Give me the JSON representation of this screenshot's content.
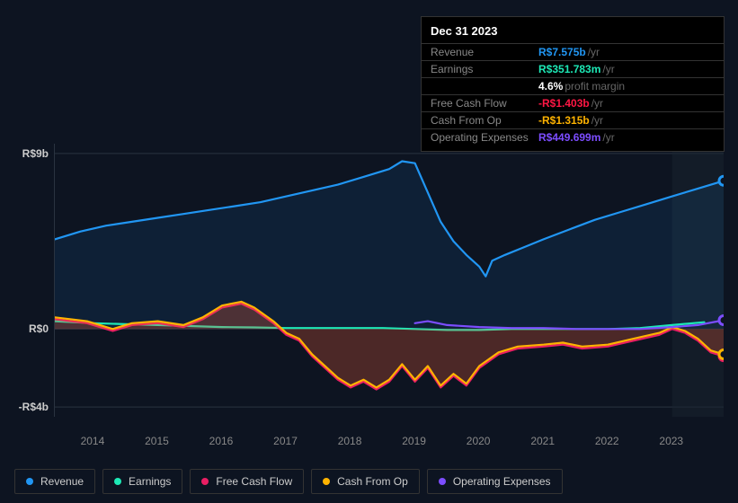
{
  "tooltip": {
    "date": "Dec 31 2023",
    "rows": [
      {
        "label": "Revenue",
        "value": "R$7.575b",
        "suffix": "/yr",
        "color": "#2196f3"
      },
      {
        "label": "Earnings",
        "value": "R$351.783m",
        "suffix": "/yr",
        "color": "#1de9b6"
      },
      {
        "label": "",
        "value": "4.6%",
        "suffix": "profit margin",
        "color": "#ffffff"
      },
      {
        "label": "Free Cash Flow",
        "value": "-R$1.403b",
        "suffix": "/yr",
        "color": "#ff1744"
      },
      {
        "label": "Cash From Op",
        "value": "-R$1.315b",
        "suffix": "/yr",
        "color": "#ffb300"
      },
      {
        "label": "Operating Expenses",
        "value": "R$449.699m",
        "suffix": "/yr",
        "color": "#7c4dff"
      }
    ]
  },
  "chart": {
    "type": "line",
    "background": "#0d1421",
    "grid_color": "#2a3340",
    "x_min": 2013.4,
    "x_max": 2023.8,
    "y_min": -4.5,
    "y_max": 9.5,
    "y_ticks": [
      {
        "v": 9,
        "label": "R$9b"
      },
      {
        "v": 0,
        "label": "R$0"
      },
      {
        "v": -4,
        "label": "-R$4b"
      }
    ],
    "x_ticks": [
      2014,
      2015,
      2016,
      2017,
      2018,
      2019,
      2020,
      2021,
      2022,
      2023
    ],
    "future_shade_from": 2023.0,
    "series": [
      {
        "name": "Revenue",
        "color": "#2196f3",
        "fill_to_zero": true,
        "fill_opacity": 0.1,
        "points": [
          [
            2013.4,
            4.6
          ],
          [
            2013.8,
            5.0
          ],
          [
            2014.2,
            5.3
          ],
          [
            2014.6,
            5.5
          ],
          [
            2015.0,
            5.7
          ],
          [
            2015.4,
            5.9
          ],
          [
            2015.8,
            6.1
          ],
          [
            2016.2,
            6.3
          ],
          [
            2016.6,
            6.5
          ],
          [
            2017.0,
            6.8
          ],
          [
            2017.4,
            7.1
          ],
          [
            2017.8,
            7.4
          ],
          [
            2018.2,
            7.8
          ],
          [
            2018.6,
            8.2
          ],
          [
            2018.8,
            8.6
          ],
          [
            2019.0,
            8.5
          ],
          [
            2019.2,
            7.0
          ],
          [
            2019.4,
            5.5
          ],
          [
            2019.6,
            4.5
          ],
          [
            2019.8,
            3.8
          ],
          [
            2020.0,
            3.2
          ],
          [
            2020.1,
            2.7
          ],
          [
            2020.2,
            3.5
          ],
          [
            2020.4,
            3.8
          ],
          [
            2020.7,
            4.2
          ],
          [
            2021.0,
            4.6
          ],
          [
            2021.4,
            5.1
          ],
          [
            2021.8,
            5.6
          ],
          [
            2022.2,
            6.0
          ],
          [
            2022.6,
            6.4
          ],
          [
            2023.0,
            6.8
          ],
          [
            2023.4,
            7.2
          ],
          [
            2023.8,
            7.6
          ]
        ]
      },
      {
        "name": "Earnings",
        "color": "#1de9b6",
        "points": [
          [
            2013.4,
            0.4
          ],
          [
            2014.0,
            0.3
          ],
          [
            2014.5,
            0.25
          ],
          [
            2015.0,
            0.2
          ],
          [
            2015.5,
            0.15
          ],
          [
            2016.0,
            0.1
          ],
          [
            2016.5,
            0.08
          ],
          [
            2017.0,
            0.05
          ],
          [
            2017.5,
            0.05
          ],
          [
            2018.0,
            0.05
          ],
          [
            2018.5,
            0.05
          ],
          [
            2019.0,
            0.0
          ],
          [
            2019.5,
            -0.05
          ],
          [
            2020.0,
            -0.05
          ],
          [
            2020.5,
            0.0
          ],
          [
            2021.0,
            0.0
          ],
          [
            2021.5,
            0.0
          ],
          [
            2022.0,
            0.0
          ],
          [
            2022.5,
            0.05
          ],
          [
            2023.0,
            0.2
          ],
          [
            2023.5,
            0.35
          ]
        ]
      },
      {
        "name": "Free Cash Flow",
        "color": "#e91e63",
        "fill_to_zero": true,
        "fill_opacity": 0.18,
        "points": [
          [
            2013.4,
            0.5
          ],
          [
            2013.9,
            0.3
          ],
          [
            2014.3,
            -0.1
          ],
          [
            2014.6,
            0.2
          ],
          [
            2015.0,
            0.3
          ],
          [
            2015.4,
            0.1
          ],
          [
            2015.7,
            0.5
          ],
          [
            2016.0,
            1.1
          ],
          [
            2016.3,
            1.3
          ],
          [
            2016.5,
            1.0
          ],
          [
            2016.8,
            0.3
          ],
          [
            2017.0,
            -0.3
          ],
          [
            2017.2,
            -0.6
          ],
          [
            2017.4,
            -1.4
          ],
          [
            2017.6,
            -2.0
          ],
          [
            2017.8,
            -2.6
          ],
          [
            2018.0,
            -3.0
          ],
          [
            2018.2,
            -2.7
          ],
          [
            2018.4,
            -3.1
          ],
          [
            2018.6,
            -2.7
          ],
          [
            2018.8,
            -1.9
          ],
          [
            2019.0,
            -2.7
          ],
          [
            2019.2,
            -2.0
          ],
          [
            2019.4,
            -3.0
          ],
          [
            2019.6,
            -2.4
          ],
          [
            2019.8,
            -2.9
          ],
          [
            2020.0,
            -2.0
          ],
          [
            2020.3,
            -1.3
          ],
          [
            2020.6,
            -1.0
          ],
          [
            2021.0,
            -0.9
          ],
          [
            2021.3,
            -0.8
          ],
          [
            2021.6,
            -1.0
          ],
          [
            2022.0,
            -0.9
          ],
          [
            2022.4,
            -0.6
          ],
          [
            2022.8,
            -0.3
          ],
          [
            2023.0,
            0.0
          ],
          [
            2023.2,
            -0.2
          ],
          [
            2023.4,
            -0.6
          ],
          [
            2023.6,
            -1.2
          ],
          [
            2023.8,
            -1.4
          ]
        ]
      },
      {
        "name": "Cash From Op",
        "color": "#ffb300",
        "fill_to_zero": true,
        "fill_opacity": 0.12,
        "points": [
          [
            2013.4,
            0.6
          ],
          [
            2013.9,
            0.4
          ],
          [
            2014.3,
            0.0
          ],
          [
            2014.6,
            0.3
          ],
          [
            2015.0,
            0.4
          ],
          [
            2015.4,
            0.2
          ],
          [
            2015.7,
            0.6
          ],
          [
            2016.0,
            1.2
          ],
          [
            2016.3,
            1.4
          ],
          [
            2016.5,
            1.1
          ],
          [
            2016.8,
            0.4
          ],
          [
            2017.0,
            -0.2
          ],
          [
            2017.2,
            -0.5
          ],
          [
            2017.4,
            -1.3
          ],
          [
            2017.6,
            -1.9
          ],
          [
            2017.8,
            -2.5
          ],
          [
            2018.0,
            -2.9
          ],
          [
            2018.2,
            -2.6
          ],
          [
            2018.4,
            -3.0
          ],
          [
            2018.6,
            -2.6
          ],
          [
            2018.8,
            -1.8
          ],
          [
            2019.0,
            -2.6
          ],
          [
            2019.2,
            -1.9
          ],
          [
            2019.4,
            -2.9
          ],
          [
            2019.6,
            -2.3
          ],
          [
            2019.8,
            -2.8
          ],
          [
            2020.0,
            -1.9
          ],
          [
            2020.3,
            -1.2
          ],
          [
            2020.6,
            -0.9
          ],
          [
            2021.0,
            -0.8
          ],
          [
            2021.3,
            -0.7
          ],
          [
            2021.6,
            -0.9
          ],
          [
            2022.0,
            -0.8
          ],
          [
            2022.4,
            -0.5
          ],
          [
            2022.8,
            -0.2
          ],
          [
            2023.0,
            0.1
          ],
          [
            2023.2,
            -0.1
          ],
          [
            2023.4,
            -0.5
          ],
          [
            2023.6,
            -1.1
          ],
          [
            2023.8,
            -1.3
          ]
        ]
      },
      {
        "name": "Operating Expenses",
        "color": "#7c4dff",
        "points": [
          [
            2019.0,
            0.3
          ],
          [
            2019.2,
            0.4
          ],
          [
            2019.5,
            0.2
          ],
          [
            2020.0,
            0.1
          ],
          [
            2020.5,
            0.05
          ],
          [
            2021.0,
            0.05
          ],
          [
            2021.5,
            0.0
          ],
          [
            2022.0,
            0.0
          ],
          [
            2022.5,
            0.0
          ],
          [
            2023.0,
            0.1
          ],
          [
            2023.4,
            0.2
          ],
          [
            2023.8,
            0.45
          ]
        ]
      }
    ],
    "legend": [
      {
        "label": "Revenue",
        "color": "#2196f3"
      },
      {
        "label": "Earnings",
        "color": "#1de9b6"
      },
      {
        "label": "Free Cash Flow",
        "color": "#e91e63"
      },
      {
        "label": "Cash From Op",
        "color": "#ffb300"
      },
      {
        "label": "Operating Expenses",
        "color": "#7c4dff"
      }
    ]
  }
}
